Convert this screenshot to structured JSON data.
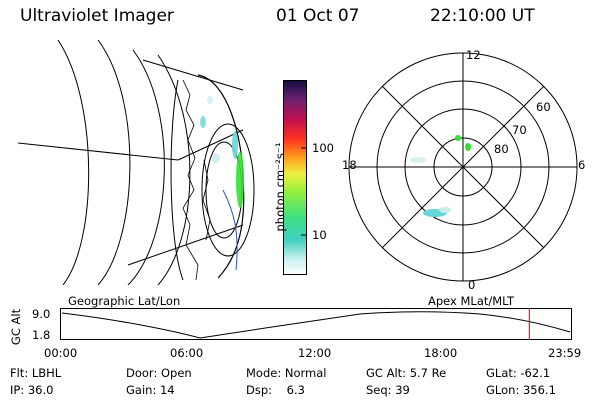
{
  "header": {
    "instrument": "Ultraviolet Imager",
    "date": "01 Oct 07",
    "time": "22:10:00 UT"
  },
  "colorbar": {
    "unit_label": "photon cm⁻²s⁻¹",
    "ticks": [
      "100",
      "10"
    ]
  },
  "polar_plot": {
    "mlt_labels": [
      "12",
      "18",
      "6",
      "0"
    ],
    "lat_labels": [
      "60",
      "70",
      "80"
    ]
  },
  "orbit_panel": {
    "left_title": "Geographic Lat/Lon",
    "right_title": "Apex  MLat/MLT",
    "y_label": "GC Alt",
    "y_ticks": [
      "9.0",
      "1.8"
    ],
    "x_ticks": [
      "00:00",
      "06:00",
      "12:00",
      "18:00",
      "23:59"
    ],
    "current_time_fraction": 0.92
  },
  "status": {
    "row1": [
      {
        "label": "Flt:",
        "value": "LBHL"
      },
      {
        "label": "Door:",
        "value": "Open"
      },
      {
        "label": "Mode:",
        "value": "Normal"
      },
      {
        "label": "GC Alt:",
        "value": "5.7 Re"
      },
      {
        "label": "GLat:",
        "value": "-62.1"
      }
    ],
    "row2": [
      {
        "label": "IP:",
        "value": "36.0"
      },
      {
        "label": "Gain:",
        "value": "14"
      },
      {
        "label": "Dsp:",
        "value": "6.3"
      },
      {
        "label": "Seq:",
        "value": "39"
      },
      {
        "label": "GLon:",
        "value": "356.1"
      }
    ]
  },
  "colors": {
    "marker": "#e02020",
    "aurora_green": "#33e033",
    "aurora_cyan": "#66d6d6"
  }
}
